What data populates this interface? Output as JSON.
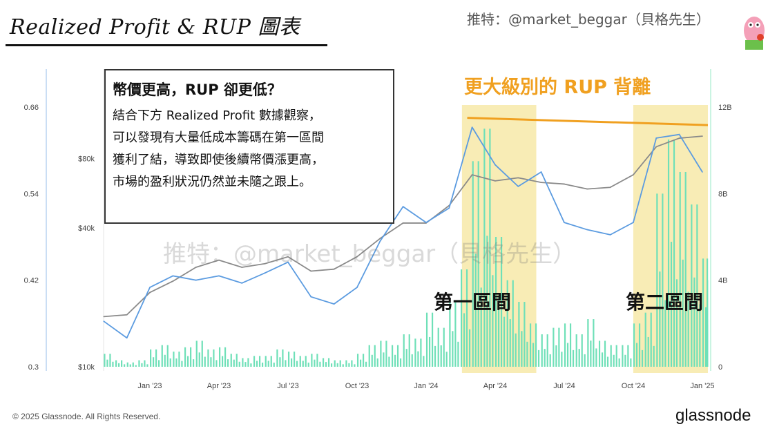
{
  "header": {
    "title": "Realized Profit & RUP 圖表",
    "twitter": "推特：@market_beggar（貝格先生）"
  },
  "annotations": {
    "note_heading": "幣價更高，RUP 卻更低？",
    "note_lines": [
      "結合下方 Realized Profit 數據觀察，",
      "可以發現有大量低成本籌碼在第一區間",
      "獲利了結，導致即使後續幣價漲更高，",
      "市場的盈利狀況仍然並未隨之跟上。"
    ],
    "divergence_label": "更大級別的 RUP 背離",
    "zone1_label": "第一區間",
    "zone2_label": "第二區間",
    "watermark": "推特：@market_beggar（貝格先生）"
  },
  "footer": {
    "copyright": "© 2025 Glassnode. All Rights Reserved.",
    "logo": "glassnode"
  },
  "colors": {
    "price": "#8a8a8a",
    "rup": "#5b9be0",
    "realized_profit": "#6fe0b8",
    "zone": "#f7e9a8",
    "divergence": "#f0a020"
  },
  "chart_data": {
    "type": "line",
    "x_ticks": [
      "Jan '23",
      "Apr '23",
      "Jul '23",
      "Oct '23",
      "Jan '24",
      "Apr '24",
      "Jul '24",
      "Oct '24",
      "Jan '25"
    ],
    "left_axis": {
      "label": "",
      "ticks": [
        "0.3",
        "0.42",
        "0.54",
        "0.66"
      ],
      "range": [
        0.3,
        0.66
      ]
    },
    "price_axis": {
      "scale": "log",
      "ticks": [
        "$10k",
        "$40k",
        "$80k"
      ],
      "range": [
        10000,
        140000
      ]
    },
    "right_axis": {
      "ticks": [
        "0",
        "4B",
        "8B",
        "12B"
      ],
      "range": [
        0,
        12
      ]
    },
    "months": [
      "2022-11",
      "2022-12",
      "2023-01",
      "2023-02",
      "2023-03",
      "2023-04",
      "2023-05",
      "2023-06",
      "2023-07",
      "2023-08",
      "2023-09",
      "2023-10",
      "2023-11",
      "2023-12",
      "2024-01",
      "2024-02",
      "2024-03",
      "2024-04",
      "2024-05",
      "2024-06",
      "2024-07",
      "2024-08",
      "2024-09",
      "2024-10",
      "2024-11",
      "2024-12",
      "2025-01"
    ],
    "series": [
      {
        "key": "price",
        "axis": "price",
        "values": [
          16500,
          16800,
          21000,
          23500,
          27000,
          29000,
          27000,
          28000,
          30000,
          26000,
          26500,
          30000,
          36000,
          42000,
          42000,
          50000,
          68000,
          64000,
          66000,
          63000,
          62000,
          59000,
          60000,
          68000,
          90000,
          98000,
          100000
        ]
      },
      {
        "key": "rup",
        "axis": "left",
        "values": [
          0.363,
          0.34,
          0.41,
          0.426,
          0.42,
          0.426,
          0.416,
          0.43,
          0.445,
          0.397,
          0.387,
          0.41,
          0.474,
          0.522,
          0.5,
          0.52,
          0.632,
          0.58,
          0.55,
          0.57,
          0.5,
          0.49,
          0.483,
          0.5,
          0.617,
          0.622,
          0.57
        ]
      },
      {
        "key": "realized_profit",
        "axis": "right",
        "type": "bar",
        "unit": "B",
        "values": [
          [
            0.6,
            0.3
          ],
          [
            0.2,
            0.3
          ],
          [
            0.8,
            1.0
          ],
          [
            0.7,
            0.9
          ],
          [
            1.2,
            0.8
          ],
          [
            0.9,
            0.6
          ],
          [
            0.4,
            0.5
          ],
          [
            0.5,
            0.8
          ],
          [
            0.7,
            0.5
          ],
          [
            0.6,
            0.4
          ],
          [
            0.3,
            0.3
          ],
          [
            0.6,
            1.0
          ],
          [
            1.2,
            1.0
          ],
          [
            1.5,
            1.3
          ],
          [
            2.5,
            1.8
          ],
          [
            3.0,
            4.5
          ],
          [
            9.5,
            11.0
          ],
          [
            6.0,
            4.0
          ],
          [
            3.0,
            2.0
          ],
          [
            1.5,
            1.8
          ],
          [
            2.0,
            1.5
          ],
          [
            2.2,
            1.2
          ],
          [
            1.0,
            1.0
          ],
          [
            2.0,
            2.5
          ],
          [
            8.0,
            10.5
          ],
          [
            9.0,
            7.5
          ],
          [
            5.0,
            4.0
          ]
        ]
      }
    ],
    "highlight_zones": [
      [
        "2024-02-18",
        "2024-05-25"
      ],
      [
        "2024-10-01",
        "2025-01-20"
      ]
    ],
    "divergence_line": {
      "from": [
        "2024-02-25",
        0.645
      ],
      "to": [
        "2025-01-15",
        0.635
      ]
    },
    "grid": false
  }
}
